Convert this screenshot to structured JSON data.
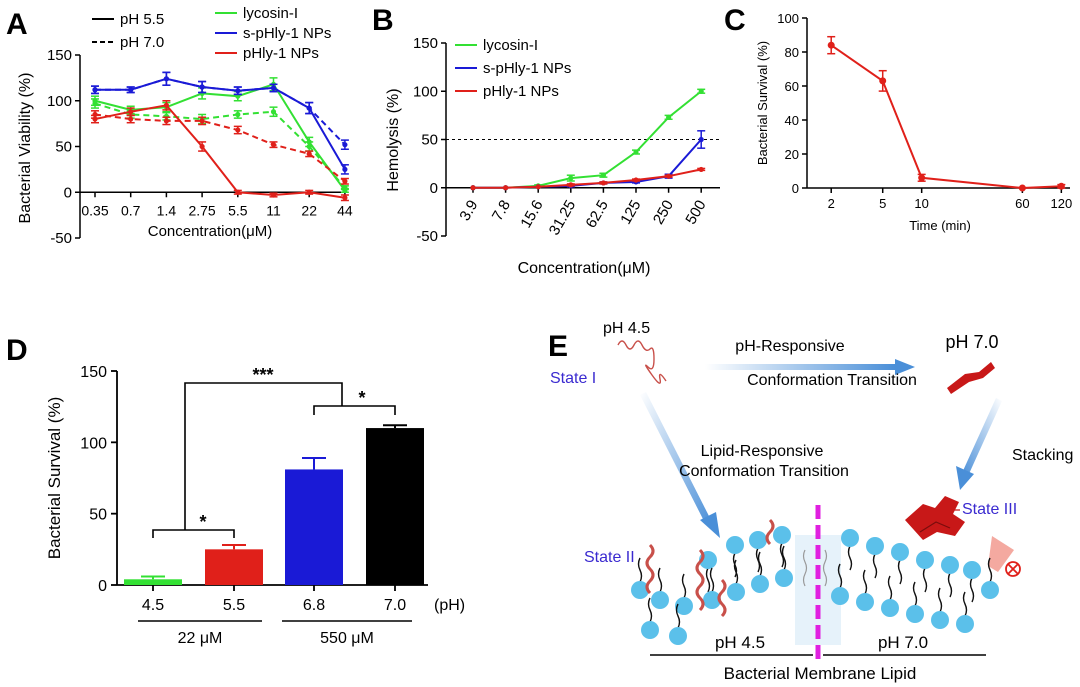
{
  "panels": {
    "A": "A",
    "B": "B",
    "C": "C",
    "D": "D",
    "E": "E"
  },
  "colors": {
    "green": "#33e033",
    "blue": "#1a1ad6",
    "red": "#e0201a",
    "black": "#000000",
    "lipid_head": "#5bc0ea",
    "divider": "#e020e0",
    "state_text": "#3a2ad0"
  },
  "chart_data": [
    {
      "id": "A",
      "type": "line",
      "ylabel": "Bacterial Viability (%)",
      "xlabel": "Concentration(μM)",
      "categories": [
        "0.35",
        "0.7",
        "1.4",
        "2.75",
        "5.5",
        "11",
        "22",
        "44"
      ],
      "ylim": [
        -50,
        150
      ],
      "yticks": [
        "150",
        "100",
        "50",
        "0",
        "-50"
      ],
      "legend_left": [
        {
          "label": "pH 5.5",
          "style": "solid"
        },
        {
          "label": "pH 7.0",
          "style": "dashed"
        }
      ],
      "series": [
        {
          "name": "lycosin-I",
          "color_key": "green",
          "style": "solid",
          "values": [
            100,
            90,
            93,
            108,
            105,
            118,
            55,
            2
          ],
          "err": [
            5,
            4,
            5,
            6,
            5,
            7,
            5,
            2
          ]
        },
        {
          "name": "lycosin-I",
          "color_key": "green",
          "style": "dashed",
          "values": [
            97,
            85,
            83,
            80,
            85,
            88,
            50,
            5
          ],
          "err": [
            5,
            4,
            4,
            5,
            4,
            5,
            5,
            2
          ]
        },
        {
          "name": "s-pHly-1 NPs",
          "color_key": "blue",
          "style": "solid",
          "values": [
            112,
            112,
            124,
            115,
            111,
            114,
            92,
            25
          ],
          "err": [
            4,
            3,
            7,
            6,
            4,
            4,
            6,
            5
          ]
        },
        {
          "name": "s-pHly-1 NPs",
          "color_key": "blue",
          "style": "dashed",
          "values": [
            112,
            112,
            124,
            115,
            111,
            114,
            92,
            52
          ],
          "err": [
            4,
            3,
            7,
            6,
            4,
            4,
            6,
            5
          ]
        },
        {
          "name": "pHly-1 NPs",
          "color_key": "red",
          "style": "solid",
          "values": [
            80,
            88,
            95,
            50,
            0,
            -3,
            0,
            -6
          ],
          "err": [
            4,
            4,
            5,
            5,
            2,
            2,
            2,
            3
          ]
        },
        {
          "name": "pHly-1 NPs",
          "color_key": "red",
          "style": "dashed",
          "values": [
            85,
            80,
            78,
            78,
            68,
            52,
            42,
            12
          ],
          "err": [
            4,
            4,
            4,
            4,
            4,
            3,
            3,
            3
          ]
        }
      ]
    },
    {
      "id": "B",
      "type": "line",
      "ylabel": "Hemolysis (%)",
      "xlabel": "Concentration(μM)",
      "categories": [
        "3.9",
        "7.8",
        "15.6",
        "31.25",
        "62.5",
        "125",
        "250",
        "500"
      ],
      "ylim": [
        -50,
        150
      ],
      "yticks": [
        "150",
        "100",
        "50",
        "0",
        "-50"
      ],
      "reference_line": 50,
      "series": [
        {
          "name": "lycosin-I",
          "color_key": "green",
          "values": [
            0,
            0,
            2,
            10,
            13,
            37,
            73,
            100
          ],
          "err": [
            0,
            0,
            1,
            3,
            2,
            2,
            2,
            2
          ]
        },
        {
          "name": "s-pHly-1 NPs",
          "color_key": "blue",
          "values": [
            0,
            0,
            1,
            2,
            5,
            6,
            12,
            50
          ],
          "err": [
            0,
            0,
            0,
            1,
            1,
            1,
            2,
            9
          ]
        },
        {
          "name": "pHly-1 NPs",
          "color_key": "red",
          "values": [
            0,
            0,
            1,
            3,
            5,
            8,
            12,
            19
          ],
          "err": [
            0,
            0,
            0,
            1,
            1,
            1,
            1,
            1
          ]
        }
      ]
    },
    {
      "id": "C",
      "type": "line",
      "ylabel": "Bacterial Survival (%)",
      "xlabel": "Time (min)",
      "x": [
        2,
        5,
        10,
        60,
        120
      ],
      "xtick_labels": [
        "2",
        "5",
        "10",
        "60",
        "120"
      ],
      "x_scale": "log",
      "ylim": [
        0,
        100
      ],
      "yticks": [
        "100",
        "80",
        "60",
        "40",
        "20",
        "0"
      ],
      "series": [
        {
          "color_key": "red",
          "values": [
            84,
            63,
            6,
            0,
            1
          ],
          "err": [
            5,
            6,
            2,
            0,
            1
          ]
        }
      ]
    },
    {
      "id": "D",
      "type": "bar",
      "ylabel": "Bacterial Survival (%)",
      "categories": [
        "4.5",
        "5.5",
        "6.8",
        "7.0"
      ],
      "x_unit": "(pH)",
      "values": [
        4,
        25,
        81,
        110
      ],
      "err": [
        2,
        3,
        8,
        2
      ],
      "bar_color_keys": [
        "green",
        "red",
        "blue",
        "black"
      ],
      "ylim": [
        0,
        150
      ],
      "yticks": [
        "150",
        "100",
        "50",
        "0"
      ],
      "groups": [
        "22  μM",
        "550 μM"
      ],
      "significance": [
        "***",
        "*",
        "*"
      ]
    }
  ],
  "diagram_E": {
    "ph_45_top": "pH 4.5",
    "state_1": "State I",
    "arrow_top_1": "pH-Responsive",
    "arrow_top_2": "Conformation Transition",
    "ph_70_top": "pH 7.0",
    "lipid_1": "Lipid-Responsive",
    "lipid_2": "Conformation Transition",
    "stacking": "Stacking",
    "state_3": "State III",
    "state_2": "State II",
    "ph_45_bottom": "pH 4.5",
    "ph_70_bottom": "pH 7.0",
    "membrane": "Bacterial Membrane Lipid"
  }
}
